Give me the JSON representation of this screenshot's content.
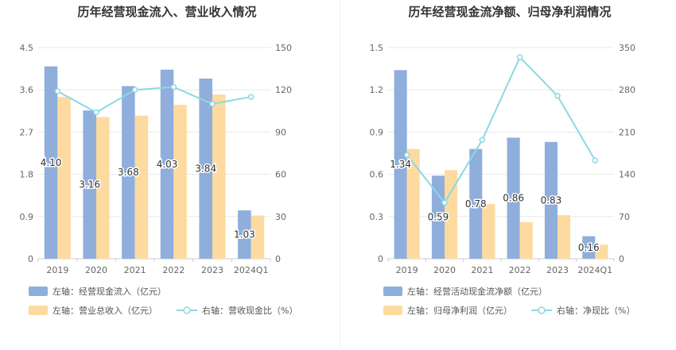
{
  "colors": {
    "bar1": "#8FAEDC",
    "bar2": "#FDDBA0",
    "line": "#8DD8E2",
    "axis_text": "#666666",
    "title": "#333333",
    "grid": "#e8e8e8"
  },
  "chart_data": [
    {
      "type": "bar+line",
      "title": "历年经营现金流入、营业收入情况",
      "categories": [
        "2019",
        "2020",
        "2021",
        "2022",
        "2023",
        "2024Q1"
      ],
      "left_axis": {
        "min": 0,
        "max": 4.5,
        "ticks": [
          "0",
          "0.9",
          "1.8",
          "2.7",
          "3.6",
          "4.5"
        ]
      },
      "right_axis": {
        "min": 0,
        "max": 150,
        "ticks": [
          "0",
          "30",
          "60",
          "90",
          "120",
          "150"
        ]
      },
      "series": [
        {
          "name": "左轴：经营现金流入（亿元）",
          "axis": "left",
          "kind": "bar",
          "values": [
            4.1,
            3.16,
            3.68,
            4.03,
            3.84,
            1.03
          ],
          "labels": [
            "4.10",
            "3.16",
            "3.68",
            "4.03",
            "3.84",
            "1.03"
          ]
        },
        {
          "name": "左轴：营业总收入（亿元）",
          "axis": "left",
          "kind": "bar",
          "values": [
            3.45,
            3.02,
            3.05,
            3.28,
            3.5,
            0.92
          ]
        },
        {
          "name": "右轴：营收现金比（%）",
          "axis": "right",
          "kind": "line",
          "values": [
            119,
            104,
            120,
            122,
            110,
            115
          ]
        }
      ]
    },
    {
      "type": "bar+line",
      "title": "历年经营现金流净额、归母净利润情况",
      "categories": [
        "2019",
        "2020",
        "2021",
        "2022",
        "2023",
        "2024Q1"
      ],
      "left_axis": {
        "min": 0,
        "max": 1.5,
        "ticks": [
          "0",
          "0.3",
          "0.6",
          "0.9",
          "1.2",
          "1.5"
        ]
      },
      "right_axis": {
        "min": 0,
        "max": 350,
        "ticks": [
          "0",
          "70",
          "140",
          "210",
          "280",
          "350"
        ]
      },
      "series": [
        {
          "name": "左轴：经营活动现金流净额（亿元）",
          "axis": "left",
          "kind": "bar",
          "values": [
            1.34,
            0.59,
            0.78,
            0.86,
            0.83,
            0.16
          ],
          "labels": [
            "1.34",
            "0.59",
            "0.78",
            "0.86",
            "0.83",
            "0.16"
          ]
        },
        {
          "name": "左轴：归母净利润（亿元）",
          "axis": "left",
          "kind": "bar",
          "values": [
            0.78,
            0.63,
            0.39,
            0.26,
            0.31,
            0.1
          ]
        },
        {
          "name": "右轴：净现比（%）",
          "axis": "right",
          "kind": "line",
          "values": [
            172,
            93,
            197,
            334,
            270,
            163
          ]
        }
      ]
    }
  ]
}
